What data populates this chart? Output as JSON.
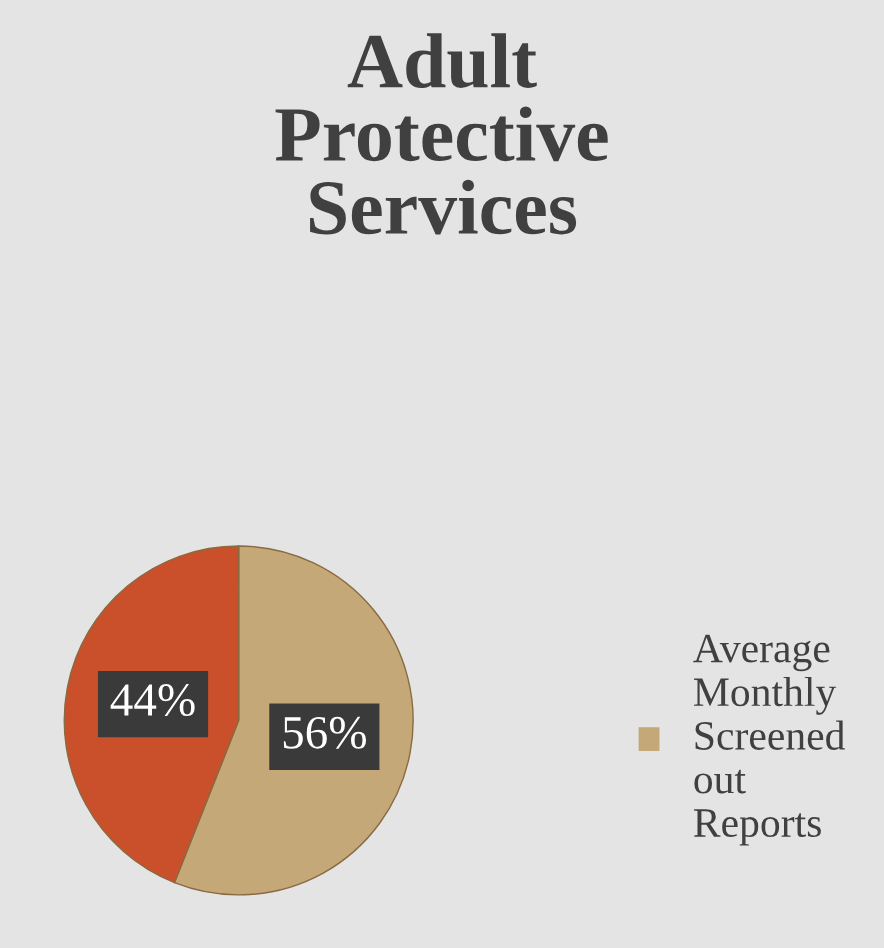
{
  "chart_data": {
    "type": "pie",
    "title": "Adult Protective Services",
    "categories": [
      "Average Monthly Screened out Reports",
      null
    ],
    "values": [
      56,
      44
    ],
    "colors": [
      "#c4a878",
      "#c9502b"
    ],
    "value_labels": [
      "56%",
      "44%"
    ],
    "legend": "right"
  }
}
